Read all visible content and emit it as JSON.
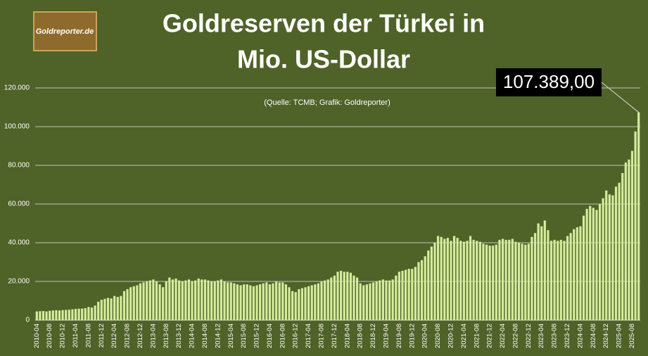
{
  "logo": "Goldreporter.de",
  "chart_data": {
    "type": "bar",
    "title": [
      "Goldreserven der Türkei in",
      "Mio. US-Dollar"
    ],
    "subtitle": "(Quelle: TCMB; Grafik: Goldreporter)",
    "color": "#d4ec9c",
    "grid": true,
    "ylim": [
      0,
      120000
    ],
    "yticks": [
      0,
      {
        "value": 20000,
        "label": "20.000"
      },
      {
        "value": 40000,
        "label": "40.000"
      },
      {
        "value": 60000,
        "label": "60.000"
      },
      {
        "value": 80000,
        "label": "80.000"
      },
      {
        "value": 100000,
        "label": "100.000"
      },
      {
        "value": 120000,
        "label": "120.000"
      }
    ],
    "categories": [
      "2010-04",
      null,
      null,
      null,
      "2010-08",
      null,
      null,
      null,
      "2010-12",
      null,
      null,
      null,
      "2011-04",
      null,
      null,
      null,
      "2011-08",
      null,
      null,
      null,
      "2011-12",
      null,
      null,
      null,
      "2012-04",
      null,
      null,
      null,
      "2012-08",
      null,
      null,
      null,
      "2012-12",
      null,
      null,
      null,
      "2013-04",
      null,
      null,
      null,
      "2013-08",
      null,
      null,
      null,
      "2013-12",
      null,
      null,
      null,
      "2014-04",
      null,
      null,
      null,
      "2014-08",
      null,
      null,
      null,
      "2014-12",
      null,
      null,
      null,
      "2015-04",
      null,
      null,
      null,
      "2015-08",
      null,
      null,
      null,
      "2015-12",
      null,
      null,
      null,
      "2016-04",
      null,
      null,
      null,
      "2016-08",
      null,
      null,
      null,
      "2016-12",
      null,
      null,
      null,
      "2017-04",
      null,
      null,
      null,
      "2017-08",
      null,
      null,
      null,
      "2017-12",
      null,
      null,
      null,
      "2018-04",
      null,
      null,
      null,
      "2018-08",
      null,
      null,
      null,
      "2018-12",
      null,
      null,
      null,
      "2019-04",
      null,
      null,
      null,
      "2019-08",
      null,
      null,
      null,
      "2019-12",
      null,
      null,
      null,
      "2020-04",
      null,
      null,
      null,
      "2020-08",
      null,
      null,
      null,
      "2020-12",
      null,
      null,
      null,
      "2021-04",
      null,
      null,
      null,
      "2021-08",
      null,
      null,
      null,
      "2021-12",
      null,
      null,
      null,
      "2022-04",
      null,
      null,
      null,
      "2022-08",
      null,
      null,
      null,
      "2022-12",
      null,
      null,
      null,
      "2023-04",
      null,
      null,
      null,
      "2023-08",
      null,
      null,
      null,
      "2023-12",
      null,
      null,
      null,
      "2024-04",
      null,
      null,
      null,
      "2024-08",
      null,
      null,
      null,
      "2024-12",
      null,
      null,
      null,
      "2025-04",
      null,
      null,
      null,
      "2025-08",
      null,
      null
    ],
    "values": [
      4500,
      4600,
      4700,
      4500,
      4800,
      5000,
      5100,
      5000,
      5200,
      5300,
      5400,
      5600,
      5800,
      5900,
      6000,
      6200,
      6800,
      6500,
      7500,
      9500,
      10500,
      11000,
      11500,
      11200,
      12500,
      12000,
      12500,
      15000,
      16000,
      17000,
      17500,
      18000,
      19000,
      19500,
      20000,
      20500,
      21000,
      20000,
      18500,
      17000,
      20000,
      22000,
      21000,
      21500,
      20500,
      20000,
      20500,
      21000,
      20000,
      20500,
      21500,
      21000,
      21000,
      20500,
      20000,
      20000,
      20500,
      21000,
      20000,
      19500,
      19500,
      19000,
      18500,
      18000,
      18500,
      18500,
      18000,
      17500,
      18000,
      18500,
      19000,
      19500,
      18500,
      19000,
      20000,
      19500,
      19500,
      18500,
      17000,
      15000,
      14500,
      16000,
      16500,
      17000,
      17500,
      18000,
      18500,
      19000,
      20000,
      20500,
      21000,
      22000,
      23000,
      25000,
      25500,
      25000,
      25000,
      24500,
      23000,
      22000,
      19000,
      18000,
      18500,
      19000,
      19500,
      20000,
      20500,
      21000,
      20500,
      20500,
      21000,
      23000,
      25000,
      25500,
      26000,
      26500,
      26500,
      27500,
      30000,
      31000,
      33000,
      36000,
      38000,
      40000,
      43500,
      43000,
      42000,
      42500,
      41000,
      43500,
      42500,
      41000,
      40500,
      41000,
      43500,
      41500,
      41000,
      40500,
      39500,
      39000,
      38500,
      38500,
      39000,
      41500,
      42000,
      41500,
      41500,
      42000,
      40500,
      40000,
      39500,
      39000,
      39500,
      43000,
      45000,
      50000,
      48500,
      51500,
      46500,
      41000,
      41500,
      41000,
      41500,
      41000,
      43500,
      45000,
      47000,
      48000,
      48500,
      54000,
      57500,
      59000,
      58000,
      57000,
      60000,
      63000,
      67000,
      65000,
      64500,
      69000,
      71000,
      76000,
      81500,
      83000,
      87500,
      97500,
      107389
    ],
    "value_labels": [
      null,
      null,
      null,
      null,
      null,
      null,
      null,
      null,
      null,
      null,
      null,
      null,
      null,
      null,
      null,
      null,
      null,
      null,
      null,
      null,
      null,
      null,
      null,
      null,
      null,
      null,
      null,
      null,
      null,
      null,
      null,
      null,
      null,
      null,
      null,
      null,
      null,
      null,
      null,
      null,
      null,
      null,
      null,
      null,
      null,
      null,
      null,
      null,
      null,
      null,
      null,
      null,
      null,
      null,
      null,
      null,
      null,
      null,
      null,
      null,
      null,
      null,
      null,
      null,
      null,
      null,
      null,
      null,
      null,
      null,
      null,
      null,
      null,
      null,
      null,
      null,
      null,
      null,
      null,
      null,
      null,
      null,
      null,
      null,
      null,
      null,
      null,
      null,
      null,
      null,
      null,
      null,
      null,
      null,
      null,
      null,
      null,
      null,
      null,
      null,
      null,
      null,
      null,
      null,
      null,
      null,
      null,
      null,
      null,
      null,
      null,
      null,
      null,
      null,
      null,
      null,
      null,
      null,
      null,
      null,
      null,
      null,
      null,
      null,
      null,
      null,
      null,
      null,
      null,
      null,
      null,
      null,
      null,
      null,
      null,
      null,
      null,
      null,
      null,
      null,
      null,
      null,
      null,
      null,
      null,
      null,
      null,
      null,
      null,
      null,
      null,
      null,
      null,
      null,
      null,
      null,
      null,
      null,
      null,
      null,
      null,
      null,
      null,
      null,
      null,
      null,
      null,
      null,
      null,
      null,
      null,
      null,
      null,
      null,
      null,
      null,
      null,
      null,
      null,
      null,
      null,
      null,
      null,
      null,
      null,
      null,
      "107.389,00"
    ]
  }
}
